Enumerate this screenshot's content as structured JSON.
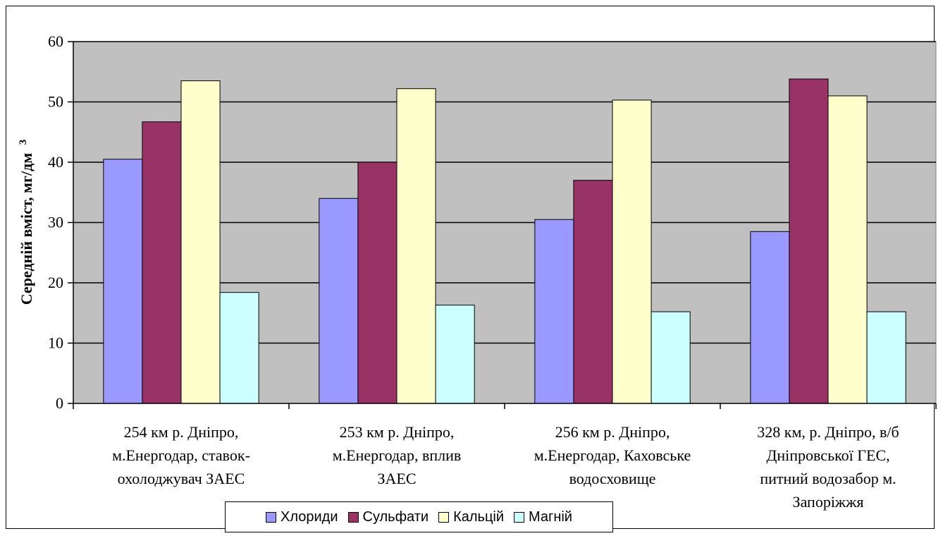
{
  "chart_data": {
    "type": "bar",
    "ylabel": "Середній вміст, мг/дм",
    "ylabel_superscript": "3",
    "ylim": [
      0,
      60
    ],
    "yticks": [
      0,
      10,
      20,
      30,
      40,
      50,
      60
    ],
    "grid": true,
    "plot_background": "#c0c0c0",
    "legend_position": "bottom",
    "categories": [
      [
        "254 км р. Дніпро,",
        "м.Енергодар, ставок-",
        "охолоджувач ЗАЕС"
      ],
      [
        "253 км р. Дніпро,",
        "м.Енергодар, вплив",
        "ЗАЕС"
      ],
      [
        "256 км р. Дніпро,",
        "м.Енергодар, Каховське",
        "водосховище"
      ],
      [
        "328 км, р. Дніпро, в/б",
        "Дніпровської ГЕС,",
        "питний водозабор м.",
        "Запоріжжя"
      ]
    ],
    "series": [
      {
        "name": "Хлориди",
        "color": "#9999ff",
        "values": [
          40.5,
          34,
          30.5,
          28.5
        ]
      },
      {
        "name": "Сульфати",
        "color": "#993366",
        "values": [
          46.7,
          40,
          37,
          53.8
        ]
      },
      {
        "name": "Кальцій",
        "color": "#ffffcc",
        "values": [
          53.5,
          52.2,
          50.3,
          51
        ]
      },
      {
        "name": "Магній",
        "color": "#ccffff",
        "values": [
          18.4,
          16.3,
          15.2,
          15.2
        ]
      }
    ]
  }
}
